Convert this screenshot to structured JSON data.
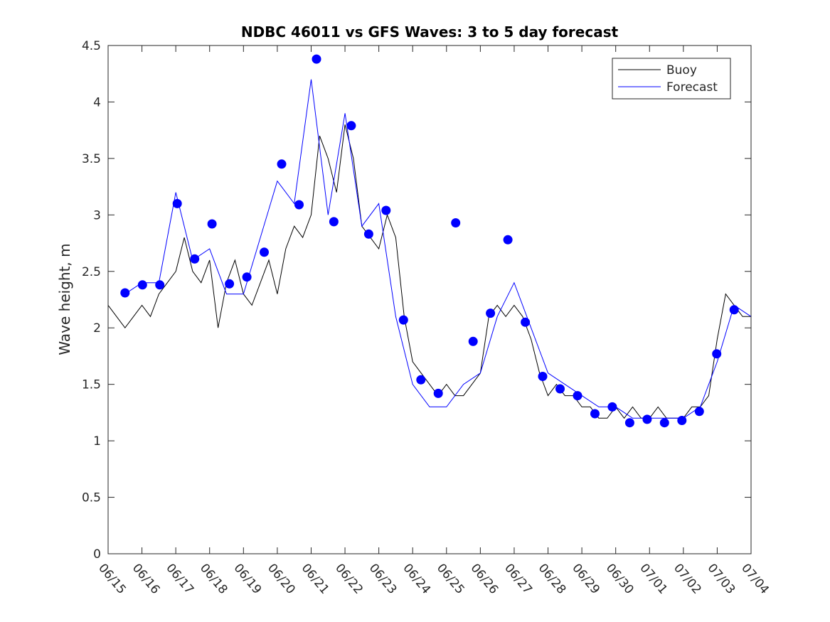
{
  "chart_data": {
    "type": "line",
    "title": "NDBC 46011 vs GFS Waves: 3 to 5 day forecast",
    "xlabel": "",
    "ylabel": "Wave height, m",
    "xlim": [
      "06/15",
      "07/04"
    ],
    "ylim": [
      0,
      4.5
    ],
    "x_ticks": [
      "06/15",
      "06/16",
      "06/17",
      "06/18",
      "06/19",
      "06/20",
      "06/21",
      "06/22",
      "06/23",
      "06/24",
      "06/25",
      "06/26",
      "06/27",
      "06/28",
      "06/29",
      "06/30",
      "07/01",
      "07/02",
      "07/03",
      "07/04"
    ],
    "y_ticks": [
      "0",
      "0.5",
      "1",
      "1.5",
      "2",
      "2.5",
      "3",
      "3.5",
      "4",
      "4.5"
    ],
    "legend_position": "top-right",
    "grid": false,
    "colors": {
      "buoy": "#000000",
      "forecast": "#0000ff"
    },
    "series": [
      {
        "name": "Buoy",
        "x": [
          "06/15 00:00",
          "06/15 06:00",
          "06/15 12:00",
          "06/15 18:00",
          "06/16 00:00",
          "06/16 06:00",
          "06/16 12:00",
          "06/16 18:00",
          "06/17 00:00",
          "06/17 06:00",
          "06/17 12:00",
          "06/17 18:00",
          "06/18 00:00",
          "06/18 06:00",
          "06/18 12:00",
          "06/18 18:00",
          "06/19 00:00",
          "06/19 06:00",
          "06/19 12:00",
          "06/19 18:00",
          "06/20 00:00",
          "06/20 06:00",
          "06/20 12:00",
          "06/20 18:00",
          "06/21 00:00",
          "06/21 06:00",
          "06/21 12:00",
          "06/21 18:00",
          "06/22 00:00",
          "06/22 06:00",
          "06/22 12:00",
          "06/22 18:00",
          "06/23 00:00",
          "06/23 06:00",
          "06/23 12:00",
          "06/23 18:00",
          "06/24 00:00",
          "06/24 06:00",
          "06/24 12:00",
          "06/24 18:00",
          "06/25 00:00",
          "06/25 06:00",
          "06/25 12:00",
          "06/25 18:00",
          "06/26 00:00",
          "06/26 06:00",
          "06/26 12:00",
          "06/26 18:00",
          "06/27 00:00",
          "06/27 06:00",
          "06/27 12:00",
          "06/27 18:00",
          "06/28 00:00",
          "06/28 06:00",
          "06/28 12:00",
          "06/28 18:00",
          "06/29 00:00",
          "06/29 06:00",
          "06/29 12:00",
          "06/29 18:00",
          "06/30 00:00",
          "06/30 06:00",
          "06/30 12:00",
          "06/30 18:00",
          "07/01 00:00",
          "07/01 06:00",
          "07/01 12:00",
          "07/01 18:00",
          "07/02 00:00",
          "07/02 06:00",
          "07/02 12:00",
          "07/02 18:00",
          "07/03 00:00",
          "07/03 06:00",
          "07/03 12:00",
          "07/03 18:00",
          "07/04 00:00"
        ],
        "values": [
          2.2,
          2.1,
          2.0,
          2.1,
          2.2,
          2.1,
          2.3,
          2.4,
          2.5,
          2.8,
          2.5,
          2.4,
          2.6,
          2.0,
          2.4,
          2.6,
          2.3,
          2.2,
          2.4,
          2.6,
          2.3,
          2.7,
          2.9,
          2.8,
          3.0,
          3.7,
          3.5,
          3.2,
          3.8,
          3.5,
          2.9,
          2.8,
          2.7,
          3.0,
          2.8,
          2.1,
          1.7,
          1.6,
          1.5,
          1.4,
          1.5,
          1.4,
          1.4,
          1.5,
          1.6,
          2.1,
          2.2,
          2.1,
          2.2,
          2.1,
          1.9,
          1.6,
          1.4,
          1.5,
          1.4,
          1.4,
          1.3,
          1.3,
          1.2,
          1.2,
          1.3,
          1.2,
          1.3,
          1.2,
          1.2,
          1.3,
          1.2,
          1.2,
          1.2,
          1.3,
          1.3,
          1.4,
          1.9,
          2.3,
          2.2,
          2.1,
          2.1
        ]
      },
      {
        "name": "Forecast",
        "x": [
          "06/15 12:00",
          "06/16 00:00",
          "06/16 12:00",
          "06/17 00:00",
          "06/17 12:00",
          "06/18 00:00",
          "06/18 12:00",
          "06/19 00:00",
          "06/19 12:00",
          "06/20 00:00",
          "06/20 12:00",
          "06/21 00:00",
          "06/21 12:00",
          "06/22 00:00",
          "06/22 12:00",
          "06/23 00:00",
          "06/23 12:00",
          "06/24 00:00",
          "06/24 12:00",
          "06/25 00:00",
          "06/25 12:00",
          "06/26 00:00",
          "06/26 12:00",
          "06/27 00:00",
          "06/27 12:00",
          "06/28 00:00",
          "06/28 12:00",
          "06/29 00:00",
          "06/29 12:00",
          "06/30 00:00",
          "06/30 12:00",
          "07/01 00:00",
          "07/01 12:00",
          "07/02 00:00",
          "07/02 12:00",
          "07/03 00:00",
          "07/03 12:00",
          "07/04 00:00"
        ],
        "values": [
          2.3,
          2.4,
          2.4,
          3.2,
          2.6,
          2.7,
          2.3,
          2.3,
          2.8,
          3.3,
          3.1,
          4.2,
          3.0,
          3.9,
          2.9,
          3.1,
          2.1,
          1.5,
          1.3,
          1.3,
          1.5,
          1.6,
          2.1,
          2.4,
          2.0,
          1.6,
          1.5,
          1.4,
          1.3,
          1.3,
          1.2,
          1.2,
          1.2,
          1.2,
          1.3,
          1.7,
          2.2,
          2.1
        ]
      }
    ],
    "marker_values": [
      2.31,
      2.38,
      2.38,
      3.1,
      2.61,
      2.92,
      2.39,
      2.45,
      2.67,
      3.45,
      3.09,
      4.38,
      2.94,
      3.79,
      2.83,
      3.04,
      2.07,
      1.54,
      1.42,
      2.93,
      1.88,
      2.13,
      2.78,
      2.05,
      1.57,
      1.46,
      1.4,
      1.24,
      1.3,
      1.16,
      1.19,
      1.16,
      1.18,
      1.26,
      1.77,
      2.16
    ]
  }
}
